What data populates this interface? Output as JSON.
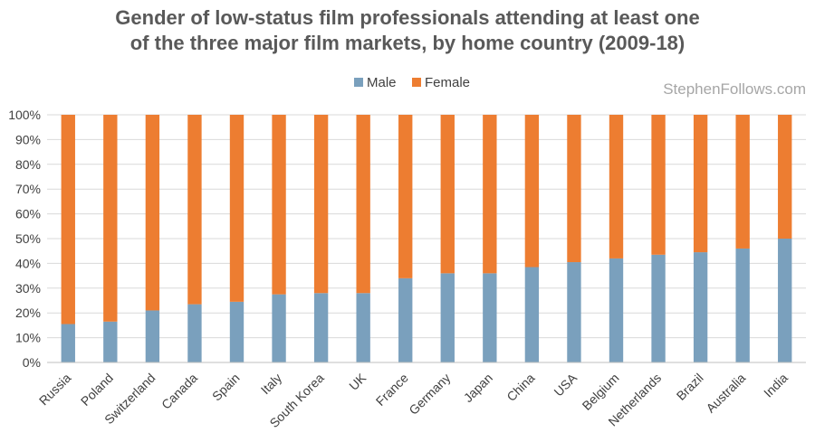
{
  "colors": {
    "male": "#7aa0bd",
    "female": "#ed7d31"
  },
  "watermark": "StephenFollows.com",
  "chart_data": {
    "type": "bar",
    "stacked": "percent",
    "title": "Gender of low-status film professionals attending at least one of the three major film markets, by home country (2009-18)",
    "title_lines": [
      "Gender of low-status film professionals attending at least one",
      "of the three major film markets, by home country (2009-18)"
    ],
    "xlabel": "",
    "ylabel": "",
    "ylim": [
      0,
      100
    ],
    "yticks": [
      "0%",
      "10%",
      "20%",
      "30%",
      "40%",
      "50%",
      "60%",
      "70%",
      "80%",
      "90%",
      "100%"
    ],
    "grid": true,
    "legend_position": "top",
    "categories": [
      "Russia",
      "Poland",
      "Switzerland",
      "Canada",
      "Spain",
      "Italy",
      "South Korea",
      "UK",
      "France",
      "Germany",
      "Japan",
      "China",
      "USA",
      "Belgium",
      "Netherlands",
      "Brazil",
      "Australia",
      "India"
    ],
    "series": [
      {
        "name": "Male",
        "values": [
          15.5,
          16.5,
          21,
          23.5,
          24.5,
          27.5,
          28,
          28,
          34,
          36,
          36,
          38.5,
          40.5,
          42,
          43.5,
          44.5,
          46,
          50
        ]
      },
      {
        "name": "Female",
        "values": [
          84.5,
          83.5,
          79,
          76.5,
          75.5,
          72.5,
          72,
          72,
          66,
          64,
          64,
          61.5,
          59.5,
          58,
          56.5,
          55.5,
          54,
          50
        ]
      }
    ]
  }
}
